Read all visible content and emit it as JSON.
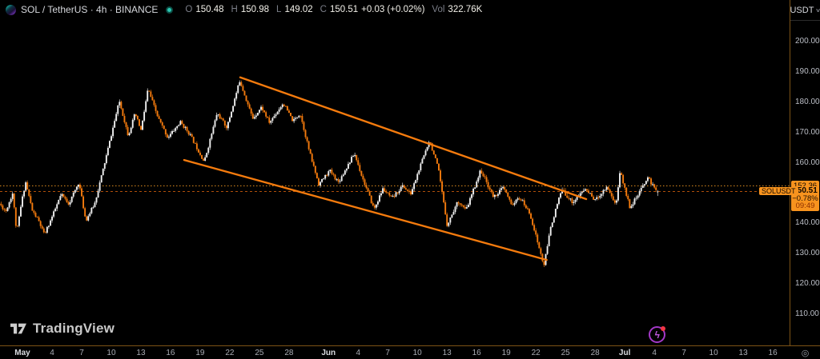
{
  "header": {
    "symbol_title": "SOL / TetherUS · 4h · BINANCE",
    "ohlc": {
      "o_label": "O",
      "o": "150.48",
      "h_label": "H",
      "h": "150.98",
      "l_label": "L",
      "l": "149.02",
      "c_label": "C",
      "c": "150.51",
      "change": "+0.03 (+0.02%)",
      "vol_label": "Vol",
      "vol": "322.76K"
    }
  },
  "icons": {
    "chevron_down": "∨",
    "target": "◎",
    "bolt": "ϟ"
  },
  "price_axis": {
    "currency": "USDT",
    "ticks": [
      {
        "label": "200.00",
        "value": 200
      },
      {
        "label": "190.00",
        "value": 190
      },
      {
        "label": "180.00",
        "value": 180
      },
      {
        "label": "170.00",
        "value": 170
      },
      {
        "label": "160.00",
        "value": 160
      },
      {
        "label": "140.00",
        "value": 140
      },
      {
        "label": "130.00",
        "value": 130
      },
      {
        "label": "120.00",
        "value": 120
      },
      {
        "label": "110.00",
        "value": 110
      }
    ],
    "level_label": {
      "label": "152.36",
      "value": 152.36
    },
    "price_box": {
      "price": "150.51",
      "change_pct": "−0.78%",
      "countdown": "09:49",
      "value": 150.51
    }
  },
  "symbol_label": {
    "text": "SOLUSDT"
  },
  "time_axis": {
    "ticks": [
      {
        "label": "May",
        "day": 0,
        "month": true
      },
      {
        "label": "4",
        "day": 3
      },
      {
        "label": "7",
        "day": 6
      },
      {
        "label": "10",
        "day": 9
      },
      {
        "label": "13",
        "day": 12
      },
      {
        "label": "16",
        "day": 15
      },
      {
        "label": "19",
        "day": 18
      },
      {
        "label": "22",
        "day": 21
      },
      {
        "label": "25",
        "day": 24
      },
      {
        "label": "28",
        "day": 27
      },
      {
        "label": "Jun",
        "day": 31,
        "month": true
      },
      {
        "label": "4",
        "day": 34
      },
      {
        "label": "7",
        "day": 37
      },
      {
        "label": "10",
        "day": 40
      },
      {
        "label": "13",
        "day": 43
      },
      {
        "label": "16",
        "day": 46
      },
      {
        "label": "19",
        "day": 49
      },
      {
        "label": "22",
        "day": 52
      },
      {
        "label": "25",
        "day": 55
      },
      {
        "label": "28",
        "day": 58
      },
      {
        "label": "Jul",
        "day": 61,
        "month": true
      },
      {
        "label": "4",
        "day": 64
      },
      {
        "label": "7",
        "day": 67
      },
      {
        "label": "10",
        "day": 70
      },
      {
        "label": "13",
        "day": 73
      },
      {
        "label": "16",
        "day": 76
      }
    ]
  },
  "watermark": {
    "text": "TradingView"
  },
  "event_marker": {
    "day": 64.3
  },
  "chart_data": {
    "type": "candlestick",
    "symbol": "SOLUSDT",
    "timeframe": "4h",
    "exchange": "BINANCE",
    "title": "SOL / TetherUS · 4h · BINANCE",
    "last_bar": {
      "open": 150.48,
      "high": 150.98,
      "low": 149.02,
      "close": 150.51,
      "change": "+0.03",
      "change_pct": "+0.02%",
      "volume": "322.76K"
    },
    "y_axis": {
      "visible_range": [
        105,
        207
      ],
      "tick_step": 10,
      "grid": false
    },
    "x_axis": {
      "start_date": "Apr 28",
      "end_date": "Jul 16",
      "bars_per_day": 6
    },
    "price_lines": [
      {
        "value": 152.36,
        "style": "dotted",
        "color": "#d98a1f"
      },
      {
        "value": 150.51,
        "style": "dashed",
        "color": "#b0500a",
        "role": "last-price"
      }
    ],
    "channel": {
      "color": "#f57b0d",
      "upper": {
        "from": {
          "day": 22.06,
          "price": 188.2
        },
        "to": {
          "day": 57.1,
          "price": 148.0
        }
      },
      "lower": {
        "from": {
          "day": 16.38,
          "price": 160.9
        },
        "to": {
          "day": 53.1,
          "price": 127.9
        }
      }
    },
    "price_path_waypoints": [
      [
        -2.4,
        147
      ],
      [
        -1.6,
        144
      ],
      [
        -0.9,
        150
      ],
      [
        -0.5,
        136.8
      ],
      [
        0.0,
        147
      ],
      [
        0.4,
        153.8
      ],
      [
        1.1,
        144
      ],
      [
        1.7,
        141
      ],
      [
        2.3,
        136.2
      ],
      [
        3.2,
        143
      ],
      [
        4.0,
        149.5
      ],
      [
        4.8,
        146.5
      ],
      [
        5.8,
        153.6
      ],
      [
        6.5,
        140.9
      ],
      [
        7.4,
        146.5
      ],
      [
        8.2,
        157
      ],
      [
        9.9,
        180.4
      ],
      [
        10.8,
        169
      ],
      [
        11.5,
        176.2
      ],
      [
        12.1,
        170.6
      ],
      [
        12.8,
        184.4
      ],
      [
        13.8,
        175
      ],
      [
        14.8,
        168.3
      ],
      [
        16.1,
        173.4
      ],
      [
        17.0,
        169.6
      ],
      [
        18.5,
        160.3
      ],
      [
        19.8,
        176.4
      ],
      [
        20.8,
        171.6
      ],
      [
        22.1,
        187.2
      ],
      [
        23.4,
        174.6
      ],
      [
        24.3,
        178.4
      ],
      [
        25.1,
        173.2
      ],
      [
        26.5,
        179.7
      ],
      [
        27.5,
        173.6
      ],
      [
        28.2,
        176.4
      ],
      [
        29.2,
        163
      ],
      [
        30.1,
        152.9
      ],
      [
        31.2,
        157.4
      ],
      [
        32.1,
        153.6
      ],
      [
        33.7,
        163.1
      ],
      [
        34.5,
        155.2
      ],
      [
        35.7,
        144.7
      ],
      [
        36.6,
        151.4
      ],
      [
        37.5,
        148.1
      ],
      [
        38.6,
        152.4
      ],
      [
        39.4,
        149.6
      ],
      [
        41.3,
        167.6
      ],
      [
        42.2,
        158
      ],
      [
        43.1,
        139.4
      ],
      [
        44.2,
        147.4
      ],
      [
        45.0,
        144.2
      ],
      [
        46.5,
        157.6
      ],
      [
        47.8,
        148.6
      ],
      [
        48.8,
        151.9
      ],
      [
        49.6,
        146.1
      ],
      [
        50.5,
        148.4
      ],
      [
        51.5,
        143
      ],
      [
        52.9,
        125.9
      ],
      [
        53.6,
        139
      ],
      [
        54.7,
        151.1
      ],
      [
        55.8,
        146.9
      ],
      [
        57.1,
        151.4
      ],
      [
        58.1,
        147.6
      ],
      [
        59.3,
        152.2
      ],
      [
        60.2,
        145.9
      ],
      [
        60.6,
        157.3
      ],
      [
        61.6,
        145.4
      ],
      [
        62.4,
        149
      ],
      [
        63.4,
        155.3
      ],
      [
        64.0,
        152
      ],
      [
        64.4,
        150.5
      ]
    ],
    "colors": {
      "up": "#f0f0f0",
      "down": "#f57b0d",
      "background": "#000000",
      "accent": "#f7931e"
    }
  }
}
